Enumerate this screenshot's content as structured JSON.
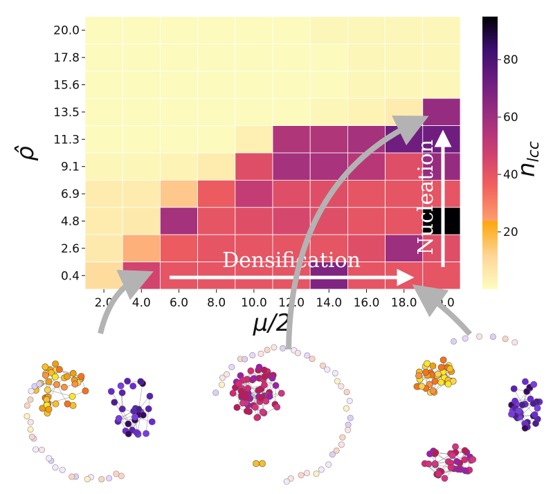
{
  "chart_data": {
    "type": "heatmap",
    "x_tick_labels": [
      "2.0",
      "4.0",
      "6.0",
      "8.0",
      "10.0",
      "12.0",
      "14.0",
      "16.0",
      "18.0",
      "20.0"
    ],
    "y_tick_labels": [
      "20.0",
      "17.8",
      "15.6",
      "13.5",
      "11.3",
      "9.1",
      "6.9",
      "4.8",
      "2.6",
      "0.4"
    ],
    "xlabel": "μ/2",
    "ylabel": "ρ̂",
    "colorbar": {
      "label_main": "n",
      "label_sub": "lcc",
      "ticks": [
        20,
        40,
        60,
        80
      ],
      "tick_labels": [
        "20",
        "40",
        "60",
        "80"
      ],
      "range": [
        0,
        95
      ],
      "colormap": "magma_r"
    },
    "values": [
      [
        1,
        1,
        1,
        1,
        1,
        1,
        2,
        2,
        2,
        2
      ],
      [
        1,
        1,
        1,
        1,
        1,
        1,
        1,
        2,
        2,
        2
      ],
      [
        1,
        1,
        1,
        1,
        1,
        1,
        1,
        2,
        2,
        2
      ],
      [
        1,
        1,
        1,
        1,
        1,
        1,
        2,
        3,
        5,
        62
      ],
      [
        1,
        1,
        1,
        1,
        4,
        55,
        55,
        58,
        72,
        72
      ],
      [
        2,
        2,
        3,
        5,
        42,
        58,
        57,
        53,
        42,
        62
      ],
      [
        5,
        5,
        15,
        38,
        50,
        42,
        42,
        40,
        40,
        40
      ],
      [
        5,
        6,
        58,
        40,
        42,
        45,
        42,
        40,
        40,
        95
      ],
      [
        6,
        20,
        38,
        40,
        40,
        40,
        40,
        42,
        60,
        42
      ],
      [
        10,
        46,
        40,
        40,
        40,
        40,
        68,
        40,
        40,
        40
      ]
    ],
    "annotations": [
      "Densification",
      "Nucleation"
    ]
  },
  "colors": {
    "grid": "#ffffff",
    "arrow_gray": "#b3b3b3",
    "arrow_white": "#ffffff",
    "edge": "#9e9e9e"
  }
}
